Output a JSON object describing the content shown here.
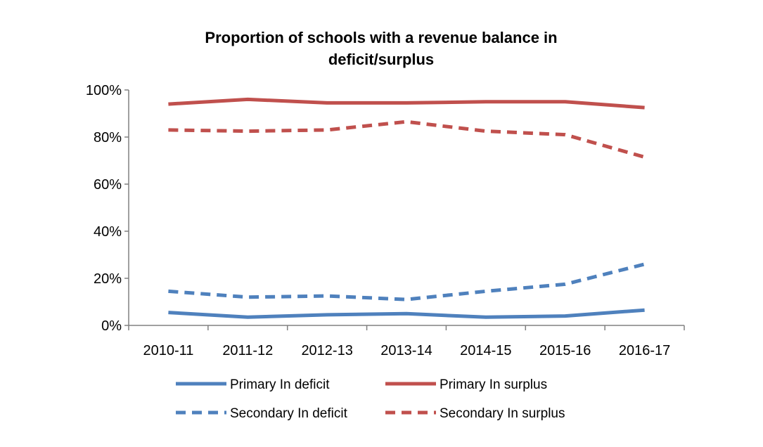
{
  "chart_data": {
    "type": "line",
    "title_lines": [
      "Proportion of schools with a revenue balance in",
      "deficit/surplus"
    ],
    "xlabel": "",
    "ylabel": "",
    "categories": [
      "2010-11",
      "2011-12",
      "2012-13",
      "2013-14",
      "2014-15",
      "2015-16",
      "2016-17"
    ],
    "ylim": [
      0,
      100
    ],
    "yticks": [
      0,
      20,
      40,
      60,
      80,
      100
    ],
    "ytick_labels": [
      "0%",
      "20%",
      "40%",
      "60%",
      "80%",
      "100%"
    ],
    "grid": false,
    "legend_placement": "bottom",
    "series": [
      {
        "name": "Primary  In deficit",
        "values": [
          5.5,
          3.5,
          4.5,
          5,
          3.5,
          4,
          6.5
        ],
        "color": "#4F81BD",
        "dash": "solid"
      },
      {
        "name": "Primary  In surplus",
        "values": [
          94,
          96,
          94.5,
          94.5,
          95,
          95,
          92.5
        ],
        "color": "#C0504D",
        "dash": "solid"
      },
      {
        "name": "Secondary In deficit",
        "values": [
          14.5,
          12,
          12.5,
          11,
          14.5,
          17.5,
          26
        ],
        "color": "#4F81BD",
        "dash": "dashed"
      },
      {
        "name": "Secondary In surplus",
        "values": [
          83,
          82.5,
          83,
          86.5,
          82.5,
          81,
          71.5
        ],
        "color": "#C0504D",
        "dash": "dashed"
      }
    ]
  }
}
